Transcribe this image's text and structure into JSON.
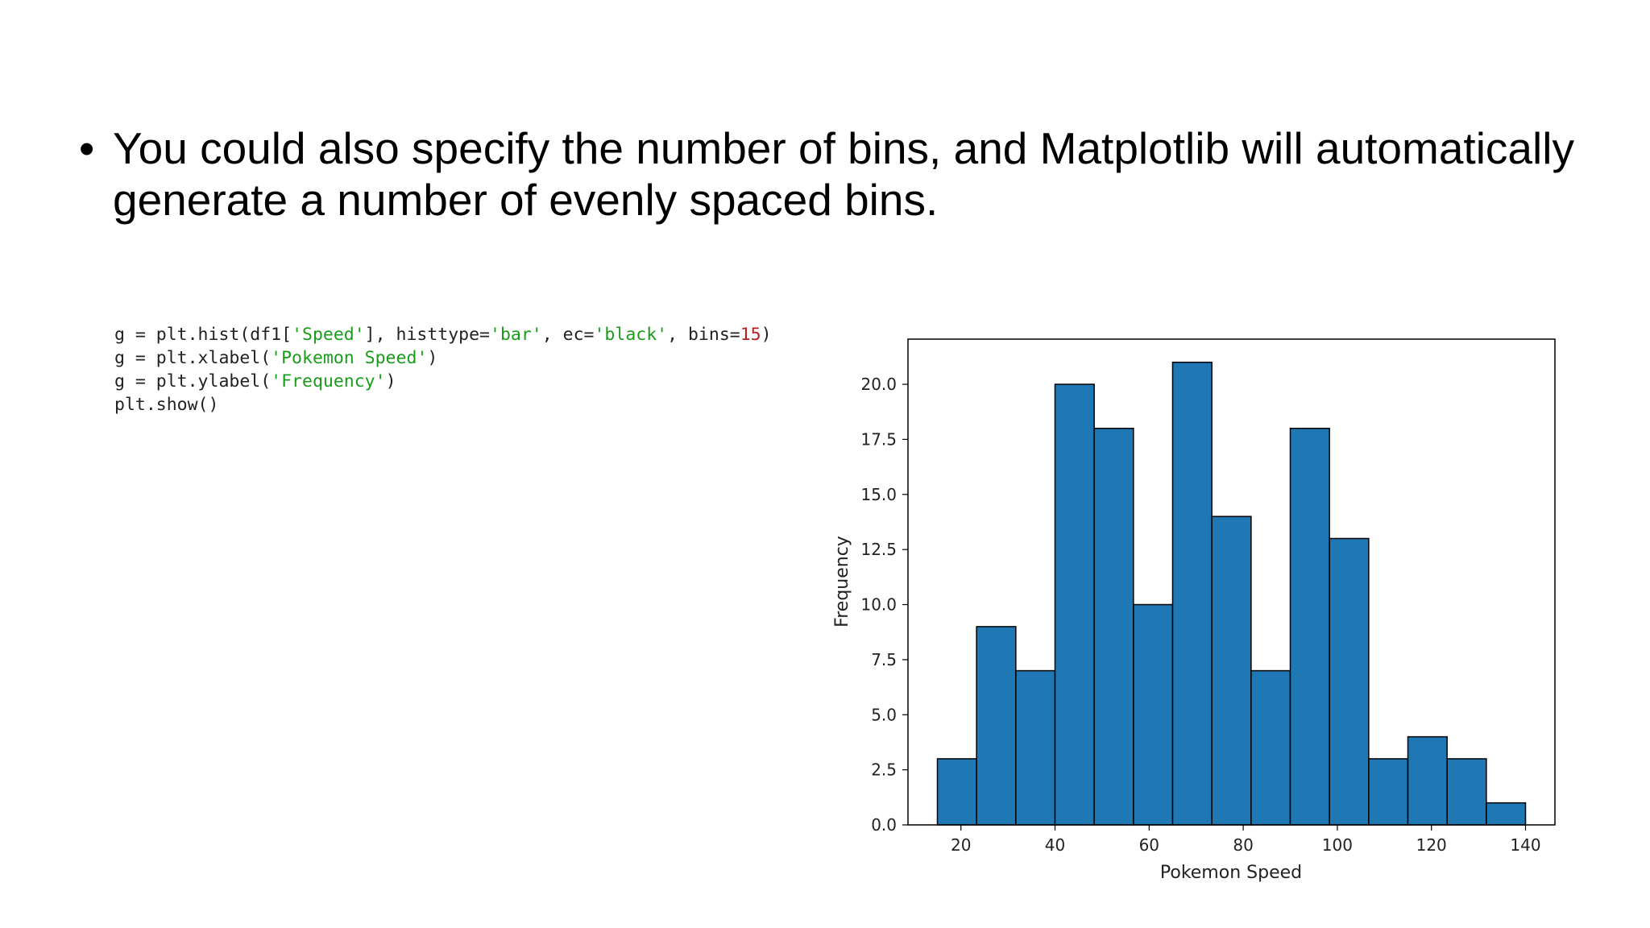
{
  "slide": {
    "bullet_text": "You could also specify the number of bins, and Matplotlib will automatically generate a number of evenly spaced bins."
  },
  "code": {
    "line1": {
      "p1": "g = plt.hist(df1[",
      "s1": "'Speed'",
      "p2": "], histtype=",
      "s2": "'bar'",
      "p3": ", ec=",
      "s3": "'black'",
      "p4": ", bins=",
      "n1": "15",
      "p5": ")"
    },
    "line2": {
      "p1": "g = plt.xlabel(",
      "s1": "'Pokemon Speed'",
      "p2": ")"
    },
    "line3": {
      "p1": "g = plt.ylabel(",
      "s1": "'Frequency'",
      "p2": ")"
    },
    "line4": "plt.show()",
    "colors": {
      "string": "#1a9c1a",
      "number": "#b22222",
      "text": "#222222"
    }
  },
  "chart_data": {
    "type": "bar",
    "subtype": "histogram",
    "bins": [
      {
        "start": 15,
        "end": 23.33,
        "count": 3
      },
      {
        "start": 23.33,
        "end": 31.67,
        "count": 9
      },
      {
        "start": 31.67,
        "end": 40,
        "count": 7
      },
      {
        "start": 40,
        "end": 48.33,
        "count": 20
      },
      {
        "start": 48.33,
        "end": 56.67,
        "count": 18
      },
      {
        "start": 56.67,
        "end": 65,
        "count": 10
      },
      {
        "start": 65,
        "end": 73.33,
        "count": 21
      },
      {
        "start": 73.33,
        "end": 81.67,
        "count": 14
      },
      {
        "start": 81.67,
        "end": 90,
        "count": 7
      },
      {
        "start": 90,
        "end": 98.33,
        "count": 18
      },
      {
        "start": 98.33,
        "end": 106.67,
        "count": 13
      },
      {
        "start": 106.67,
        "end": 115,
        "count": 3
      },
      {
        "start": 115,
        "end": 123.33,
        "count": 4
      },
      {
        "start": 123.33,
        "end": 131.67,
        "count": 3
      },
      {
        "start": 131.67,
        "end": 140,
        "count": 1
      }
    ],
    "xlabel": "Pokemon Speed",
    "ylabel": "Frequency",
    "xlim": [
      8.75,
      146.25
    ],
    "ylim": [
      0,
      22.05
    ],
    "xticks": [
      20,
      40,
      60,
      80,
      100,
      120,
      140
    ],
    "yticks": [
      0.0,
      2.5,
      5.0,
      7.5,
      10.0,
      12.5,
      15.0,
      17.5,
      20.0
    ],
    "grid": false,
    "legend": "none",
    "bar_color": "#1f77b4",
    "edge_color": "#000000"
  }
}
